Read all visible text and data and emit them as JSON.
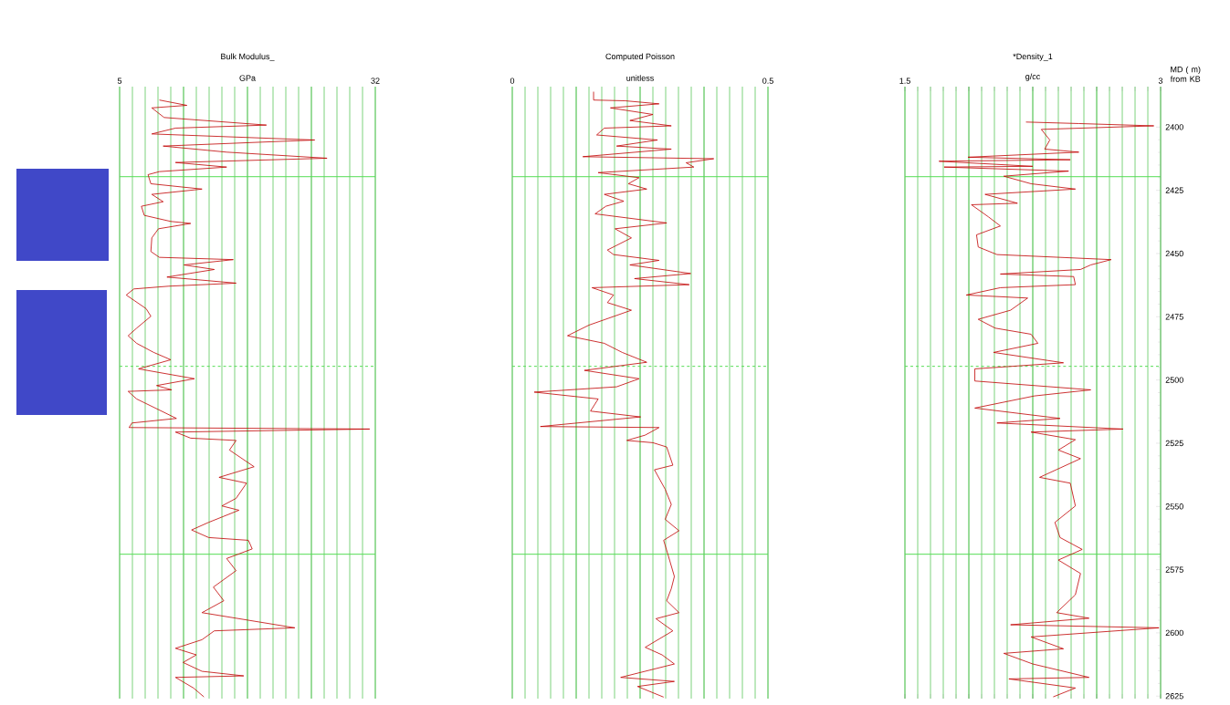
{
  "chart_data": [
    {
      "type": "line",
      "orientation": "horizontal",
      "title": "Bulk Modulus_",
      "xlabel": "GPa",
      "color": "#c00000",
      "marker": "none",
      "line_style": "solid",
      "grid": "x",
      "tick_labels": "x",
      "xlim": [
        5,
        32
      ],
      "xticks": [
        5,
        {
          "value": 6.35,
          "label": null
        },
        {
          "value": 7.7,
          "label": null
        },
        {
          "value": 9.05,
          "label": null
        },
        {
          "value": 10.4,
          "label": null
        },
        {
          "value": 11.75,
          "label": null
        },
        {
          "value": 13.1,
          "label": null
        },
        {
          "value": 14.45,
          "label": null
        },
        {
          "value": 15.8,
          "label": null
        },
        {
          "value": 17.15,
          "label": null
        },
        {
          "value": 18.5,
          "label": null
        },
        {
          "value": 19.85,
          "label": null
        },
        {
          "value": 21.2,
          "label": null
        },
        {
          "value": 22.55,
          "label": null
        },
        {
          "value": 23.9,
          "label": null
        },
        {
          "value": 25.25,
          "label": null
        },
        {
          "value": 26.6,
          "label": null
        },
        {
          "value": 27.95,
          "label": null
        },
        {
          "value": 29.3,
          "label": null
        },
        {
          "value": 30.65,
          "label": null
        },
        32
      ],
      "ylim": [
        2626,
        2384
      ],
      "x": [
        2389.3,
        2391.4,
        2392.4,
        2396.2,
        2399.2,
        2400.4,
        2402.7,
        2405.1,
        2407.5,
        2409.9,
        2412.3,
        2414.0,
        2415.8,
        2417.6,
        2418.8,
        2422.4,
        2424.5,
        2426.6,
        2429.5,
        2431.3,
        2434.9,
        2437.3,
        2438.1,
        2440.2,
        2443.8,
        2449.2,
        2451.5,
        2452.4,
        2454.5,
        2456.3,
        2459.3,
        2461.7,
        2462.9,
        2464.0,
        2466.4,
        2471.8,
        2474.8,
        2479.5,
        2482.5,
        2485.5,
        2489.1,
        2492.0,
        2495.6,
        2499.5,
        2502.2,
        2503.9,
        2504.5,
        2507.5,
        2515.2,
        2517.0,
        2518.8,
        2519.4,
        2520.6,
        2523.0,
        2523.9,
        2527.7,
        2534.3,
        2538.5,
        2540.8,
        2546.8,
        2549.8,
        2551.5,
        2556.3,
        2559.3,
        2562.3,
        2563.4,
        2566.8,
        2570.6,
        2575.4,
        2581.9,
        2587.3,
        2592.0,
        2598.0,
        2599.2,
        2602.7,
        2606.1,
        2608.7,
        2611.7,
        2615.2,
        2617.0,
        2617.6,
        2621.8,
        2625.3
      ],
      "values": [
        9.2,
        12.1,
        8.4,
        9.7,
        20.5,
        10.9,
        8.4,
        25.6,
        9.6,
        16.3,
        26.9,
        10.9,
        16.3,
        9.2,
        8.0,
        8.3,
        13.7,
        8.4,
        9.6,
        7.3,
        7.6,
        10.4,
        12.5,
        9.1,
        8.4,
        8.3,
        9.2,
        17.0,
        11.8,
        15.0,
        10.0,
        17.3,
        10.2,
        6.5,
        5.7,
        7.8,
        8.3,
        6.8,
        5.9,
        6.8,
        8.6,
        10.4,
        7.0,
        12.9,
        8.9,
        10.5,
        5.9,
        6.8,
        11.0,
        6.3,
        6.0,
        31.4,
        10.9,
        12.5,
        17.3,
        16.6,
        19.2,
        15.5,
        18.4,
        17.3,
        15.8,
        17.6,
        14.4,
        12.6,
        14.4,
        18.6,
        19.0,
        16.3,
        17.3,
        14.9,
        16.0,
        13.7,
        23.5,
        15.0,
        13.7,
        10.9,
        13.1,
        11.7,
        13.7,
        18.1,
        10.9,
        12.8,
        13.9
      ],
      "ref_lines": [
        {
          "axis": "y",
          "value": 2419.6,
          "color": "#55dd55",
          "line_style": "solid"
        },
        {
          "axis": "y",
          "value": 2494.6,
          "color": "#55dd55",
          "line_style": "dashed"
        },
        {
          "axis": "y",
          "value": 2568.9,
          "color": "#55dd55",
          "line_style": "solid"
        }
      ]
    },
    {
      "type": "line",
      "orientation": "horizontal",
      "title": "Computed Poisson",
      "xlabel": "unitless",
      "color": "#c00000",
      "marker": "none",
      "line_style": "solid",
      "grid": "x",
      "tick_labels": "x",
      "xlim": [
        0,
        0.5
      ],
      "xticks": [
        0,
        {
          "value": 0.025,
          "label": null
        },
        {
          "value": 0.05,
          "label": null
        },
        {
          "value": 0.075,
          "label": null
        },
        {
          "value": 0.1,
          "label": null
        },
        {
          "value": 0.125,
          "label": null
        },
        {
          "value": 0.15,
          "label": null
        },
        {
          "value": 0.175,
          "label": null
        },
        {
          "value": 0.2,
          "label": null
        },
        {
          "value": 0.225,
          "label": null
        },
        {
          "value": 0.25,
          "label": null
        },
        {
          "value": 0.275,
          "label": null
        },
        {
          "value": 0.3,
          "label": null
        },
        {
          "value": 0.325,
          "label": null
        },
        {
          "value": 0.35,
          "label": null
        },
        {
          "value": 0.375,
          "label": null
        },
        {
          "value": 0.4,
          "label": null
        },
        {
          "value": 0.425,
          "label": null
        },
        {
          "value": 0.45,
          "label": null
        },
        {
          "value": 0.475,
          "label": null
        },
        0.5
      ],
      "ylim": [
        2626,
        2384
      ],
      "x": [
        2386.0,
        2389.3,
        2389.6,
        2390.8,
        2392.4,
        2395.0,
        2397.4,
        2399.5,
        2400.4,
        2403.1,
        2405.1,
        2407.5,
        2408.7,
        2411.7,
        2412.5,
        2414.1,
        2415.8,
        2418.0,
        2420.0,
        2422.4,
        2424.5,
        2426.6,
        2429.3,
        2431.3,
        2434.3,
        2437.9,
        2440.2,
        2443.8,
        2448.6,
        2450.4,
        2452.7,
        2454.5,
        2457.9,
        2459.9,
        2462.3,
        2463.5,
        2466.4,
        2469.4,
        2472.4,
        2478.3,
        2482.5,
        2485.5,
        2489.1,
        2493.0,
        2496.2,
        2499.5,
        2502.7,
        2504.8,
        2507.5,
        2512.3,
        2514.6,
        2518.4,
        2518.8,
        2521.8,
        2523.9,
        2524.8,
        2526.5,
        2533.7,
        2535.5,
        2543.2,
        2549.2,
        2555.1,
        2559.6,
        2563.4,
        2569.4,
        2577.7,
        2582.5,
        2587.3,
        2592.0,
        2594.4,
        2599.2,
        2605.7,
        2608.7,
        2612.3,
        2617.6,
        2619.2,
        2621.2,
        2625.4
      ],
      "values": [
        0.159,
        0.159,
        0.221,
        0.287,
        0.192,
        0.275,
        0.23,
        0.311,
        0.18,
        0.165,
        0.284,
        0.204,
        0.311,
        0.138,
        0.394,
        0.34,
        0.355,
        0.168,
        0.248,
        0.227,
        0.263,
        0.18,
        0.218,
        0.183,
        0.162,
        0.302,
        0.201,
        0.233,
        0.186,
        0.198,
        0.287,
        0.23,
        0.349,
        0.239,
        0.346,
        0.156,
        0.198,
        0.186,
        0.233,
        0.15,
        0.108,
        0.18,
        0.215,
        0.263,
        0.141,
        0.248,
        0.204,
        0.043,
        0.168,
        0.153,
        0.251,
        0.055,
        0.287,
        0.26,
        0.224,
        0.275,
        0.302,
        0.314,
        0.278,
        0.299,
        0.311,
        0.299,
        0.326,
        0.296,
        0.305,
        0.317,
        0.311,
        0.302,
        0.326,
        0.281,
        0.314,
        0.26,
        0.293,
        0.317,
        0.212,
        0.317,
        0.245,
        0.296
      ],
      "ref_lines": [
        {
          "axis": "y",
          "value": 2419.6,
          "color": "#55dd55",
          "line_style": "solid"
        },
        {
          "axis": "y",
          "value": 2494.6,
          "color": "#55dd55",
          "line_style": "dashed"
        },
        {
          "axis": "y",
          "value": 2568.9,
          "color": "#55dd55",
          "line_style": "solid"
        }
      ]
    },
    {
      "type": "line",
      "orientation": "horizontal",
      "title": "*Density_1",
      "xlabel": "g/cc",
      "ylabel": "MD ( m) from KB",
      "color": "#c00000",
      "marker": "none",
      "line_style": "solid",
      "grid": "x",
      "xlim": [
        1.5,
        3
      ],
      "xticks": [
        1.5,
        {
          "value": 1.575,
          "label": null
        },
        {
          "value": 1.65,
          "label": null
        },
        {
          "value": 1.725,
          "label": null
        },
        {
          "value": 1.8,
          "label": null
        },
        {
          "value": 1.875,
          "label": null
        },
        {
          "value": 1.95,
          "label": null
        },
        {
          "value": 2.025,
          "label": null
        },
        {
          "value": 2.1,
          "label": null
        },
        {
          "value": 2.175,
          "label": null
        },
        {
          "value": 2.25,
          "label": null
        },
        {
          "value": 2.325,
          "label": null
        },
        {
          "value": 2.4,
          "label": null
        },
        {
          "value": 2.475,
          "label": null
        },
        {
          "value": 2.55,
          "label": null
        },
        {
          "value": 2.625,
          "label": null
        },
        {
          "value": 2.7,
          "label": null
        },
        {
          "value": 2.775,
          "label": null
        },
        {
          "value": 2.85,
          "label": null
        },
        {
          "value": 2.925,
          "label": null
        },
        3
      ],
      "ylim": [
        2626,
        2384
      ],
      "yticks": [
        2400,
        2425,
        2450,
        2475,
        2500,
        2525,
        2550,
        2575,
        2600,
        2625
      ],
      "x": [
        2398.0,
        2398.6,
        2399.5,
        2400.9,
        2405.1,
        2408.7,
        2409.9,
        2411.9,
        2412.9,
        2413.5,
        2415.5,
        2415.8,
        2417.4,
        2419.4,
        2422.4,
        2424.5,
        2426.6,
        2430.1,
        2430.7,
        2435.5,
        2439.1,
        2442.6,
        2447.4,
        2450.4,
        2452.4,
        2454.5,
        2456.3,
        2458.1,
        2459.1,
        2462.3,
        2463.5,
        2466.4,
        2467.6,
        2472.4,
        2476.0,
        2479.5,
        2481.9,
        2485.5,
        2489.1,
        2493.2,
        2495.6,
        2500.4,
        2503.9,
        2506.3,
        2511.1,
        2515.2,
        2517.0,
        2519.4,
        2520.6,
        2523.6,
        2527.7,
        2531.1,
        2538.5,
        2540.8,
        2549.8,
        2556.3,
        2562.3,
        2567.0,
        2571.2,
        2576.5,
        2584.9,
        2592.0,
        2594.2,
        2596.8,
        2598.0,
        2601.6,
        2606.3,
        2608.1,
        2612.3,
        2617.6,
        2618.2,
        2621.8,
        2625.3
      ],
      "values": [
        2.21,
        2.52,
        2.96,
        2.3,
        2.35,
        2.32,
        2.52,
        1.87,
        2.47,
        1.7,
        2.25,
        1.73,
        2.46,
        2.08,
        2.24,
        2.5,
        1.97,
        2.16,
        1.89,
        1.99,
        2.06,
        1.92,
        1.93,
        2.04,
        2.71,
        2.59,
        2.53,
        2.06,
        2.49,
        2.5,
        2.06,
        1.86,
        2.22,
        2.12,
        1.93,
        2.03,
        2.24,
        2.28,
        2.02,
        2.43,
        1.91,
        1.91,
        2.59,
        2.26,
        1.91,
        2.41,
        2.04,
        2.78,
        2.24,
        2.5,
        2.4,
        2.53,
        2.29,
        2.47,
        2.5,
        2.38,
        2.41,
        2.54,
        2.4,
        2.53,
        2.5,
        2.39,
        2.58,
        2.12,
        2.99,
        2.24,
        2.43,
        2.08,
        2.25,
        2.58,
        2.11,
        2.5,
        2.37
      ],
      "ref_lines": [
        {
          "axis": "y",
          "value": 2419.6,
          "color": "#55dd55",
          "line_style": "solid"
        },
        {
          "axis": "y",
          "value": 2494.6,
          "color": "#55dd55",
          "line_style": "dashed"
        },
        {
          "axis": "y",
          "value": 2568.9,
          "color": "#55dd55",
          "line_style": "solid"
        }
      ]
    }
  ]
}
